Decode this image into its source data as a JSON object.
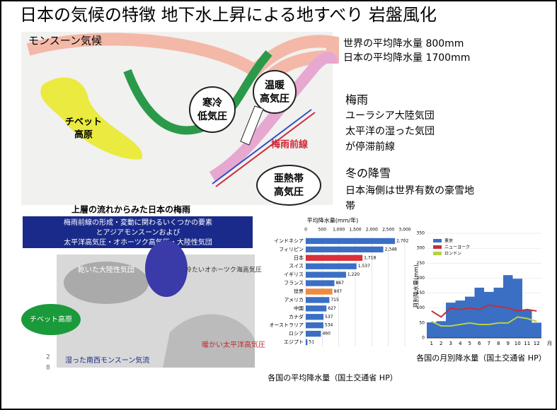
{
  "title": "日本の気候の特徴 地下水上昇による地すべり 岩盤風化",
  "map": {
    "label": "モンスーン気候",
    "tibet": [
      "チベット",
      "高原"
    ],
    "cold_low": [
      "寒冷",
      "低気圧"
    ],
    "warm_high": [
      "温暖",
      "高気圧"
    ],
    "front": "梅雨前線",
    "subtropical_high": [
      "亜熱帯",
      "高気圧"
    ]
  },
  "notes": {
    "world_rain": "世界の平均降水量 800mm",
    "japan_rain": "日本の平均降水量 1700mm",
    "tsuyu": [
      "梅雨",
      "ユーラシア大陸気団",
      "太平洋の湿った気団",
      "が停滞前線"
    ],
    "winter": [
      "冬の降雪",
      "日本海側は世界有数の豪雪地",
      "帯"
    ]
  },
  "diagram": {
    "title": "上層の流れからみた日本の梅雨",
    "box": [
      "梅雨前線の形成・変動に関わるいくつかの要素",
      "とアジアモンスーンおよび",
      "太平洋高気圧・オホーツク高気圧・大陸性気団"
    ],
    "dry": "乾いた大陸性気団",
    "okhotsk": "冷たいオホーツク海高気圧",
    "tibet": "チベット高原",
    "pacific": "暖かい太平洋高気圧",
    "monsoon": "湿った南西モンスーン気流",
    "page": [
      "2",
      "8"
    ]
  },
  "chart_data": [
    {
      "type": "hbar",
      "title": "平均降水量(mm/年)",
      "caption": "各国の平均降水量（国土交通省 HP）",
      "categories": [
        "インドネシア",
        "フィリピン",
        "日本",
        "スイス",
        "イギリス",
        "フランス",
        "世界",
        "アメリカ",
        "中国",
        "カナダ",
        "オーストラリア",
        "ロシア",
        "エジプト"
      ],
      "values": [
        2702,
        2348,
        1718,
        1537,
        1220,
        867,
        807,
        715,
        627,
        537,
        534,
        460,
        51
      ],
      "value_labels": [
        "2,702",
        "2,348",
        "1,718",
        "1,537",
        "1,220",
        "867",
        "807",
        "715",
        "627",
        "537",
        "534",
        "460",
        "51"
      ],
      "colors": [
        "#3a6fc4",
        "#3a6fc4",
        "#d9303a",
        "#3a6fc4",
        "#3a6fc4",
        "#3a6fc4",
        "#f08a3c",
        "#3a6fc4",
        "#3a6fc4",
        "#3a6fc4",
        "#3a6fc4",
        "#3a6fc4",
        "#3a6fc4"
      ],
      "xlim": [
        0,
        3000
      ],
      "xticks": [
        0,
        500,
        {
          "value": 1000,
          "label": "1,000"
        },
        {
          "value": 1500,
          "label": "1,500"
        },
        {
          "value": 2000,
          "label": "2,000"
        },
        {
          "value": 2500,
          "label": "2,500"
        },
        {
          "value": 3000,
          "label": "3,000"
        }
      ]
    },
    {
      "type": "combo",
      "caption": "各国の月別降水量（国土交通省 HP）",
      "ylabel": "月別降水量(mm)",
      "xlabel": "月",
      "categories": [
        "1",
        "2",
        "3",
        "4",
        "5",
        "6",
        "7",
        "8",
        "9",
        "10",
        "11",
        "12"
      ],
      "series": [
        {
          "name": "東京",
          "color": "#3a6fc4",
          "kind": "bar",
          "values": [
            52,
            56,
            118,
            125,
            138,
            168,
            154,
            168,
            210,
            198,
            93,
            51
          ]
        },
        {
          "name": "ニューヨーク",
          "color": "#c0303a",
          "kind": "line",
          "values": [
            90,
            70,
            100,
            95,
            100,
            95,
            110,
            105,
            100,
            90,
            95,
            90
          ]
        },
        {
          "name": "ロンドン",
          "color": "#b8d040",
          "kind": "line",
          "values": [
            55,
            40,
            40,
            45,
            50,
            45,
            45,
            50,
            50,
            70,
            65,
            55
          ]
        }
      ],
      "ylim": [
        0,
        350
      ],
      "yticks": [
        0,
        50,
        100,
        150,
        200,
        250,
        300,
        350
      ]
    }
  ]
}
